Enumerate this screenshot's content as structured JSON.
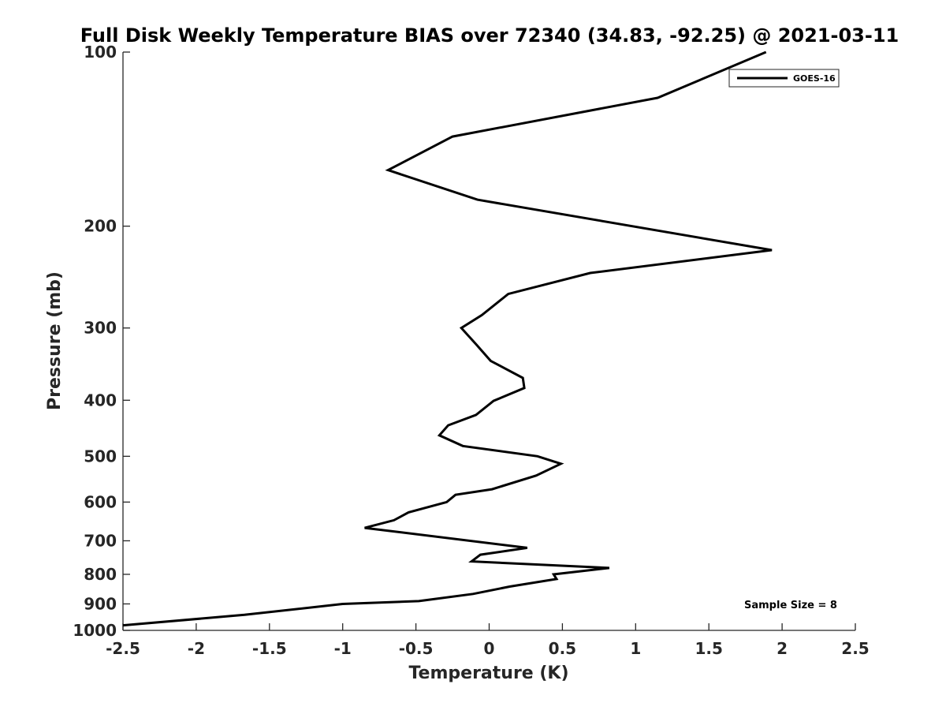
{
  "chart_data": {
    "type": "line",
    "title": "Full Disk Weekly Temperature BIAS over 72340 (34.83, -92.25) @ 2021-03-11",
    "xlabel": "Temperature (K)",
    "ylabel": "Pressure (mb)",
    "xlim": [
      -2.5,
      2.5
    ],
    "ylim": [
      100,
      1000
    ],
    "y_scale": "log",
    "y_reversed": true,
    "xticks": [
      -2.5,
      -2,
      -1.5,
      -1,
      -0.5,
      0,
      0.5,
      1,
      1.5,
      2,
      2.5
    ],
    "xtick_labels": [
      "-2.5",
      "-2",
      "-1.5",
      "-1",
      "-0.5",
      "0",
      "0.5",
      "1",
      "1.5",
      "2",
      "2.5"
    ],
    "yticks": [
      100,
      200,
      300,
      400,
      500,
      600,
      700,
      800,
      900,
      1000
    ],
    "ytick_labels": [
      "100",
      "200",
      "300",
      "400",
      "500",
      "600",
      "700",
      "800",
      "900",
      "1000"
    ],
    "grid": false,
    "legend_position": "top-right",
    "annotation": "Sample Size = 8",
    "series": [
      {
        "name": "GOES-16",
        "color": "#000000",
        "points": [
          {
            "x": 1.89,
            "p": 100
          },
          {
            "x": 1.15,
            "p": 120
          },
          {
            "x": -0.25,
            "p": 140
          },
          {
            "x": -0.69,
            "p": 160
          },
          {
            "x": -0.08,
            "p": 180
          },
          {
            "x": 1.93,
            "p": 220
          },
          {
            "x": 0.69,
            "p": 241
          },
          {
            "x": 0.13,
            "p": 262
          },
          {
            "x": -0.05,
            "p": 285
          },
          {
            "x": -0.19,
            "p": 300
          },
          {
            "x": -0.09,
            "p": 320
          },
          {
            "x": 0.01,
            "p": 342
          },
          {
            "x": 0.23,
            "p": 366
          },
          {
            "x": 0.24,
            "p": 381
          },
          {
            "x": 0.03,
            "p": 401
          },
          {
            "x": -0.09,
            "p": 424
          },
          {
            "x": -0.28,
            "p": 442
          },
          {
            "x": -0.34,
            "p": 460
          },
          {
            "x": -0.18,
            "p": 480
          },
          {
            "x": 0.33,
            "p": 500
          },
          {
            "x": 0.49,
            "p": 515
          },
          {
            "x": 0.32,
            "p": 540
          },
          {
            "x": 0.02,
            "p": 570
          },
          {
            "x": -0.23,
            "p": 583
          },
          {
            "x": -0.29,
            "p": 600
          },
          {
            "x": -0.55,
            "p": 625
          },
          {
            "x": -0.65,
            "p": 645
          },
          {
            "x": -0.85,
            "p": 665
          },
          {
            "x": 0.26,
            "p": 720
          },
          {
            "x": -0.06,
            "p": 740
          },
          {
            "x": -0.12,
            "p": 760
          },
          {
            "x": 0.82,
            "p": 780
          },
          {
            "x": 0.44,
            "p": 800
          },
          {
            "x": 0.46,
            "p": 815
          },
          {
            "x": 0.14,
            "p": 840
          },
          {
            "x": -0.11,
            "p": 865
          },
          {
            "x": -0.48,
            "p": 890
          },
          {
            "x": -1.0,
            "p": 900
          },
          {
            "x": -1.67,
            "p": 940
          },
          {
            "x": -2.5,
            "p": 980
          }
        ]
      }
    ]
  }
}
